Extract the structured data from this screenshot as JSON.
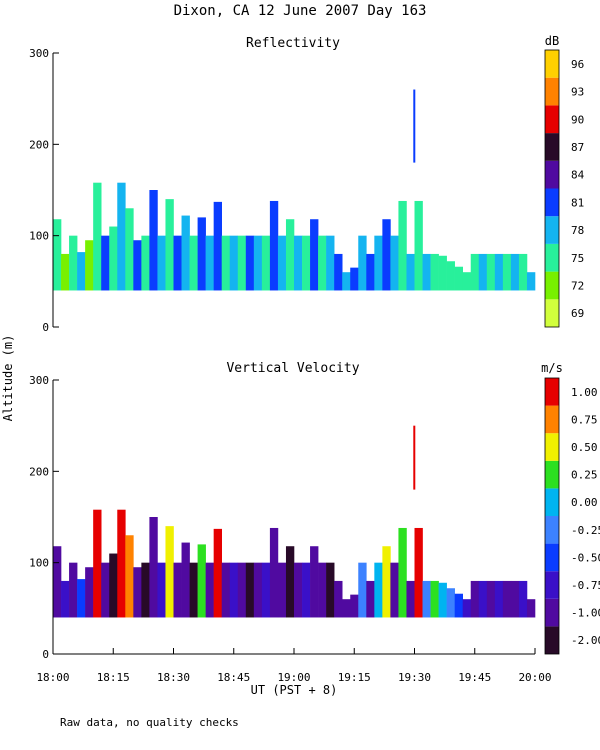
{
  "figure": {
    "title": "Dixon, CA 12 June 2007  Day 163",
    "shared_ylabel": "Altitude (m)",
    "xlabel": "UT  (PST + 8)",
    "footnote": "Raw data, no quality checks",
    "x_ticks": [
      "18:00",
      "18:15",
      "18:30",
      "18:45",
      "19:00",
      "19:15",
      "19:30",
      "19:45",
      "20:00"
    ]
  },
  "chart_data": [
    {
      "type": "heatmap",
      "title": "Reflectivity",
      "xlabel": "UT  (PST + 8)",
      "ylabel": "Altitude (m)",
      "xlim_minutes_after_1800_ut": [
        0,
        120
      ],
      "ylim": [
        0,
        300
      ],
      "y_ticks": [
        0,
        100,
        200,
        300
      ],
      "colorbar": {
        "unit": "dB",
        "labels": [
          "69",
          "72",
          "75",
          "78",
          "81",
          "84",
          "87",
          "90",
          "93",
          "96"
        ],
        "colors": [
          "#d2ff3c",
          "#78f000",
          "#28f09b",
          "#14b4f0",
          "#0a3cff",
          "#500aa0",
          "#280a28",
          "#e60000",
          "#ff8200",
          "#ffd000"
        ]
      },
      "columns": [
        {
          "t": 0,
          "base": 40,
          "top": 118,
          "c": "#28f09b"
        },
        {
          "t": 2,
          "base": 40,
          "top": 80,
          "c": "#78f000"
        },
        {
          "t": 4,
          "base": 40,
          "top": 100,
          "c": "#28f09b"
        },
        {
          "t": 6,
          "base": 40,
          "top": 82,
          "c": "#14b4f0"
        },
        {
          "t": 8,
          "base": 40,
          "top": 95,
          "c": "#78f000"
        },
        {
          "t": 10,
          "base": 40,
          "top": 158,
          "c": "#28f09b"
        },
        {
          "t": 12,
          "base": 40,
          "top": 100,
          "c": "#0a3cff"
        },
        {
          "t": 14,
          "base": 40,
          "top": 110,
          "c": "#28f09b"
        },
        {
          "t": 16,
          "base": 40,
          "top": 158,
          "c": "#14b4f0"
        },
        {
          "t": 18,
          "base": 40,
          "top": 130,
          "c": "#28f09b"
        },
        {
          "t": 20,
          "base": 40,
          "top": 95,
          "c": "#0a3cff"
        },
        {
          "t": 22,
          "base": 40,
          "top": 100,
          "c": "#28f09b"
        },
        {
          "t": 24,
          "base": 40,
          "top": 150,
          "c": "#0a3cff"
        },
        {
          "t": 26,
          "base": 40,
          "top": 100,
          "c": "#14b4f0"
        },
        {
          "t": 28,
          "base": 40,
          "top": 140,
          "c": "#28f09b"
        },
        {
          "t": 30,
          "base": 40,
          "top": 100,
          "c": "#0a3cff"
        },
        {
          "t": 32,
          "base": 40,
          "top": 122,
          "c": "#14b4f0"
        },
        {
          "t": 34,
          "base": 40,
          "top": 100,
          "c": "#28f09b"
        },
        {
          "t": 36,
          "base": 40,
          "top": 120,
          "c": "#0a3cff"
        },
        {
          "t": 38,
          "base": 40,
          "top": 100,
          "c": "#14b4f0"
        },
        {
          "t": 40,
          "base": 40,
          "top": 137,
          "c": "#0a3cff"
        },
        {
          "t": 42,
          "base": 40,
          "top": 100,
          "c": "#28f09b"
        },
        {
          "t": 44,
          "base": 40,
          "top": 100,
          "c": "#14b4f0"
        },
        {
          "t": 46,
          "base": 40,
          "top": 100,
          "c": "#28f09b"
        },
        {
          "t": 48,
          "base": 40,
          "top": 100,
          "c": "#0a3cff"
        },
        {
          "t": 50,
          "base": 40,
          "top": 100,
          "c": "#14b4f0"
        },
        {
          "t": 52,
          "base": 40,
          "top": 100,
          "c": "#28f09b"
        },
        {
          "t": 54,
          "base": 40,
          "top": 138,
          "c": "#0a3cff"
        },
        {
          "t": 56,
          "base": 40,
          "top": 100,
          "c": "#14b4f0"
        },
        {
          "t": 58,
          "base": 40,
          "top": 118,
          "c": "#28f09b"
        },
        {
          "t": 60,
          "base": 40,
          "top": 100,
          "c": "#14b4f0"
        },
        {
          "t": 62,
          "base": 40,
          "top": 100,
          "c": "#28f09b"
        },
        {
          "t": 64,
          "base": 40,
          "top": 118,
          "c": "#0a3cff"
        },
        {
          "t": 66,
          "base": 40,
          "top": 100,
          "c": "#28f09b"
        },
        {
          "t": 68,
          "base": 40,
          "top": 100,
          "c": "#14b4f0"
        },
        {
          "t": 70,
          "base": 40,
          "top": 80,
          "c": "#0a3cff"
        },
        {
          "t": 72,
          "base": 40,
          "top": 60,
          "c": "#14b4f0"
        },
        {
          "t": 74,
          "base": 40,
          "top": 65,
          "c": "#0a3cff"
        },
        {
          "t": 76,
          "base": 40,
          "top": 100,
          "c": "#14b4f0"
        },
        {
          "t": 78,
          "base": 40,
          "top": 80,
          "c": "#0a3cff"
        },
        {
          "t": 80,
          "base": 40,
          "top": 100,
          "c": "#14b4f0"
        },
        {
          "t": 82,
          "base": 40,
          "top": 118,
          "c": "#0a3cff"
        },
        {
          "t": 84,
          "base": 40,
          "top": 100,
          "c": "#14b4f0"
        },
        {
          "t": 86,
          "base": 40,
          "top": 138,
          "c": "#28f09b"
        },
        {
          "t": 88,
          "base": 40,
          "top": 80,
          "c": "#14b4f0"
        },
        {
          "t": 90,
          "base": 40,
          "top": 138,
          "c": "#28f09b"
        },
        {
          "t": 92,
          "base": 40,
          "top": 80,
          "c": "#14b4f0"
        },
        {
          "t": 94,
          "base": 40,
          "top": 80,
          "c": "#28f09b"
        },
        {
          "t": 96,
          "base": 40,
          "top": 78,
          "c": "#28f09b"
        },
        {
          "t": 98,
          "base": 40,
          "top": 72,
          "c": "#28f09b"
        },
        {
          "t": 100,
          "base": 40,
          "top": 66,
          "c": "#28f09b"
        },
        {
          "t": 102,
          "base": 40,
          "top": 60,
          "c": "#28f09b"
        },
        {
          "t": 104,
          "base": 40,
          "top": 80,
          "c": "#28f09b"
        },
        {
          "t": 106,
          "base": 40,
          "top": 80,
          "c": "#14b4f0"
        },
        {
          "t": 108,
          "base": 40,
          "top": 80,
          "c": "#28f09b"
        },
        {
          "t": 110,
          "base": 40,
          "top": 80,
          "c": "#14b4f0"
        },
        {
          "t": 112,
          "base": 40,
          "top": 80,
          "c": "#28f09b"
        },
        {
          "t": 114,
          "base": 40,
          "top": 80,
          "c": "#14b4f0"
        },
        {
          "t": 116,
          "base": 40,
          "top": 80,
          "c": "#28f09b"
        },
        {
          "t": 118,
          "base": 40,
          "top": 60,
          "c": "#14b4f0"
        }
      ],
      "features": [
        {
          "t": 89.7,
          "base": 180,
          "top": 260,
          "c": "#0a3cff",
          "label": "isolated echo near 19:30"
        }
      ]
    },
    {
      "type": "heatmap",
      "title": "Vertical Velocity",
      "xlabel": "UT  (PST + 8)",
      "ylabel": "Altitude (m)",
      "xlim_minutes_after_1800_ut": [
        0,
        120
      ],
      "ylim": [
        0,
        300
      ],
      "y_ticks": [
        0,
        100,
        200,
        300
      ],
      "colorbar": {
        "unit": "m/s",
        "labels": [
          "-2.00",
          "-1.00",
          "-0.75",
          "-0.50",
          "-0.25",
          "0.00",
          "0.25",
          "0.50",
          "0.75",
          "1.00"
        ],
        "colors": [
          "#280a28",
          "#500aa0",
          "#3a10c8",
          "#0a3cff",
          "#3c82ff",
          "#00b4f0",
          "#2ce020",
          "#f0f000",
          "#ff8200",
          "#e60000"
        ]
      },
      "columns": [
        {
          "t": 0,
          "base": 40,
          "top": 118,
          "c": "#500aa0"
        },
        {
          "t": 2,
          "base": 40,
          "top": 80,
          "c": "#3a10c8"
        },
        {
          "t": 4,
          "base": 40,
          "top": 100,
          "c": "#500aa0"
        },
        {
          "t": 6,
          "base": 40,
          "top": 82,
          "c": "#0a3cff"
        },
        {
          "t": 8,
          "base": 40,
          "top": 95,
          "c": "#500aa0"
        },
        {
          "t": 10,
          "base": 40,
          "top": 158,
          "c": "#e60000"
        },
        {
          "t": 12,
          "base": 40,
          "top": 100,
          "c": "#500aa0"
        },
        {
          "t": 14,
          "base": 40,
          "top": 110,
          "c": "#280a28"
        },
        {
          "t": 16,
          "base": 40,
          "top": 158,
          "c": "#e60000"
        },
        {
          "t": 18,
          "base": 40,
          "top": 130,
          "c": "#ff8200"
        },
        {
          "t": 20,
          "base": 40,
          "top": 95,
          "c": "#500aa0"
        },
        {
          "t": 22,
          "base": 40,
          "top": 100,
          "c": "#280a28"
        },
        {
          "t": 24,
          "base": 40,
          "top": 150,
          "c": "#500aa0"
        },
        {
          "t": 26,
          "base": 40,
          "top": 100,
          "c": "#3a10c8"
        },
        {
          "t": 28,
          "base": 40,
          "top": 140,
          "c": "#f0f000"
        },
        {
          "t": 30,
          "base": 40,
          "top": 100,
          "c": "#500aa0"
        },
        {
          "t": 32,
          "base": 40,
          "top": 122,
          "c": "#500aa0"
        },
        {
          "t": 34,
          "base": 40,
          "top": 100,
          "c": "#280a28"
        },
        {
          "t": 36,
          "base": 40,
          "top": 120,
          "c": "#2ce020"
        },
        {
          "t": 38,
          "base": 40,
          "top": 100,
          "c": "#500aa0"
        },
        {
          "t": 40,
          "base": 40,
          "top": 137,
          "c": "#e60000"
        },
        {
          "t": 42,
          "base": 40,
          "top": 100,
          "c": "#500aa0"
        },
        {
          "t": 44,
          "base": 40,
          "top": 100,
          "c": "#3a10c8"
        },
        {
          "t": 46,
          "base": 40,
          "top": 100,
          "c": "#500aa0"
        },
        {
          "t": 48,
          "base": 40,
          "top": 100,
          "c": "#280a28"
        },
        {
          "t": 50,
          "base": 40,
          "top": 100,
          "c": "#500aa0"
        },
        {
          "t": 52,
          "base": 40,
          "top": 100,
          "c": "#3a10c8"
        },
        {
          "t": 54,
          "base": 40,
          "top": 138,
          "c": "#500aa0"
        },
        {
          "t": 56,
          "base": 40,
          "top": 100,
          "c": "#500aa0"
        },
        {
          "t": 58,
          "base": 40,
          "top": 118,
          "c": "#280a28"
        },
        {
          "t": 60,
          "base": 40,
          "top": 100,
          "c": "#500aa0"
        },
        {
          "t": 62,
          "base": 40,
          "top": 100,
          "c": "#3a10c8"
        },
        {
          "t": 64,
          "base": 40,
          "top": 118,
          "c": "#500aa0"
        },
        {
          "t": 66,
          "base": 40,
          "top": 100,
          "c": "#500aa0"
        },
        {
          "t": 68,
          "base": 40,
          "top": 100,
          "c": "#280a28"
        },
        {
          "t": 70,
          "base": 40,
          "top": 80,
          "c": "#500aa0"
        },
        {
          "t": 72,
          "base": 40,
          "top": 60,
          "c": "#500aa0"
        },
        {
          "t": 74,
          "base": 40,
          "top": 65,
          "c": "#500aa0"
        },
        {
          "t": 76,
          "base": 40,
          "top": 100,
          "c": "#3c82ff"
        },
        {
          "t": 78,
          "base": 40,
          "top": 80,
          "c": "#500aa0"
        },
        {
          "t": 80,
          "base": 40,
          "top": 100,
          "c": "#00b4f0"
        },
        {
          "t": 82,
          "base": 40,
          "top": 118,
          "c": "#f0f000"
        },
        {
          "t": 84,
          "base": 40,
          "top": 100,
          "c": "#500aa0"
        },
        {
          "t": 86,
          "base": 40,
          "top": 138,
          "c": "#2ce020"
        },
        {
          "t": 88,
          "base": 40,
          "top": 80,
          "c": "#500aa0"
        },
        {
          "t": 90,
          "base": 40,
          "top": 138,
          "c": "#e60000"
        },
        {
          "t": 92,
          "base": 40,
          "top": 80,
          "c": "#3c82ff"
        },
        {
          "t": 94,
          "base": 40,
          "top": 80,
          "c": "#2ce020"
        },
        {
          "t": 96,
          "base": 40,
          "top": 78,
          "c": "#00b4f0"
        },
        {
          "t": 98,
          "base": 40,
          "top": 72,
          "c": "#3c82ff"
        },
        {
          "t": 100,
          "base": 40,
          "top": 66,
          "c": "#0a3cff"
        },
        {
          "t": 102,
          "base": 40,
          "top": 60,
          "c": "#3a10c8"
        },
        {
          "t": 104,
          "base": 40,
          "top": 80,
          "c": "#500aa0"
        },
        {
          "t": 106,
          "base": 40,
          "top": 80,
          "c": "#3a10c8"
        },
        {
          "t": 108,
          "base": 40,
          "top": 80,
          "c": "#500aa0"
        },
        {
          "t": 110,
          "base": 40,
          "top": 80,
          "c": "#3a10c8"
        },
        {
          "t": 112,
          "base": 40,
          "top": 80,
          "c": "#500aa0"
        },
        {
          "t": 114,
          "base": 40,
          "top": 80,
          "c": "#500aa0"
        },
        {
          "t": 116,
          "base": 40,
          "top": 80,
          "c": "#3a10c8"
        },
        {
          "t": 118,
          "base": 40,
          "top": 60,
          "c": "#500aa0"
        }
      ],
      "features": [
        {
          "t": 89.7,
          "base": 180,
          "top": 250,
          "c": "#e60000",
          "label": "isolated updraft near 19:30"
        }
      ]
    }
  ]
}
